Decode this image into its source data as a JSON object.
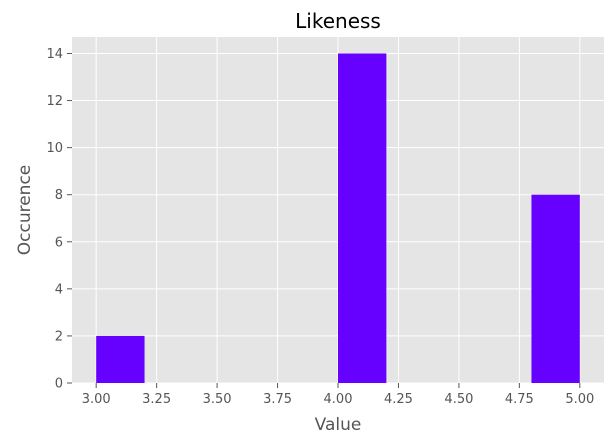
{
  "chart_data": {
    "type": "bar",
    "title": "Likeness",
    "xlabel": "Value",
    "ylabel": "Occurence",
    "bins": [
      {
        "x0": 3.0,
        "x1": 3.2,
        "value": 2
      },
      {
        "x0": 4.0,
        "x1": 4.2,
        "value": 14
      },
      {
        "x0": 4.8,
        "x1": 5.0,
        "value": 8
      }
    ],
    "xlim": [
      2.9,
      5.1
    ],
    "ylim": [
      0,
      14.7
    ],
    "x_ticks": [
      "3.00",
      "3.25",
      "3.50",
      "3.75",
      "4.00",
      "4.25",
      "4.50",
      "4.75",
      "5.00"
    ],
    "y_ticks": [
      "0",
      "2",
      "4",
      "6",
      "8",
      "10",
      "12",
      "14"
    ],
    "grid": true,
    "bar_color": "#6600ff",
    "plot_background": "#e5e5e5"
  }
}
